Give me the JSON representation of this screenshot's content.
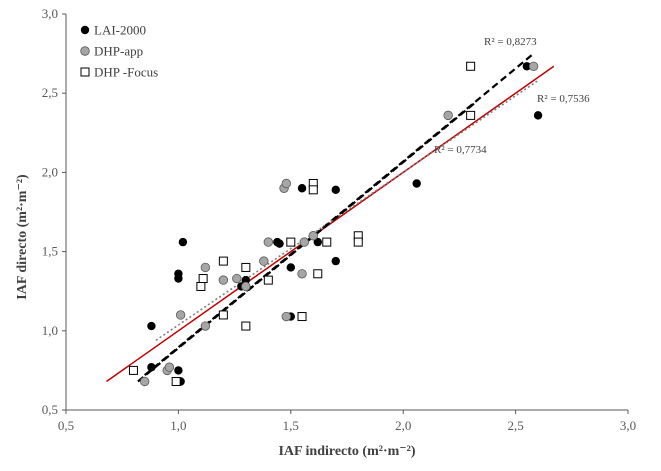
{
  "chart_data": {
    "type": "scatter",
    "title": "",
    "xlabel": "IAF indirecto (m²·m⁻²)",
    "ylabel": "IAF directo (m²·m⁻²)",
    "xlim": [
      0.5,
      3.0
    ],
    "ylim": [
      0.5,
      3.0
    ],
    "xticks": [
      "0,5",
      "1,0",
      "1,5",
      "2,0",
      "2,5",
      "3,0"
    ],
    "yticks": [
      "0,5",
      "1,0",
      "1,5",
      "2,0",
      "2,5",
      "3,0"
    ],
    "grid": false,
    "legend_position": "top-left",
    "series": [
      {
        "name": "LAI-2000",
        "marker": "filled-circle",
        "color": "#000000",
        "trend": {
          "style": "dashed",
          "color": "#000000",
          "r2_label": "R² = 0,8273",
          "x": [
            0.85,
            2.58
          ],
          "y": [
            0.72,
            2.75
          ]
        },
        "points": [
          [
            0.88,
            1.03
          ],
          [
            0.88,
            0.77
          ],
          [
            1.0,
            1.36
          ],
          [
            1.0,
            1.33
          ],
          [
            1.0,
            0.75
          ],
          [
            1.01,
            0.68
          ],
          [
            1.02,
            1.56
          ],
          [
            1.28,
            1.28
          ],
          [
            1.3,
            1.32
          ],
          [
            1.44,
            1.56
          ],
          [
            1.45,
            1.55
          ],
          [
            1.5,
            1.4
          ],
          [
            1.5,
            1.09
          ],
          [
            1.55,
            1.9
          ],
          [
            1.62,
            1.56
          ],
          [
            1.7,
            1.89
          ],
          [
            1.7,
            1.44
          ],
          [
            2.06,
            1.93
          ],
          [
            2.55,
            2.67
          ],
          [
            2.6,
            2.36
          ]
        ]
      },
      {
        "name": "DHP-app",
        "marker": "gray-circle",
        "color": "#a6a6a6",
        "trend": {
          "style": "dotted",
          "color": "#7f7f7f",
          "r2_label": "R² = 0,7536",
          "x": [
            0.9,
            2.6
          ],
          "y": [
            0.94,
            2.58
          ]
        },
        "points": [
          [
            0.85,
            0.68
          ],
          [
            0.95,
            0.75
          ],
          [
            0.96,
            0.77
          ],
          [
            1.01,
            1.1
          ],
          [
            1.12,
            1.4
          ],
          [
            1.12,
            1.03
          ],
          [
            1.2,
            1.32
          ],
          [
            1.26,
            1.33
          ],
          [
            1.3,
            1.28
          ],
          [
            1.38,
            1.44
          ],
          [
            1.4,
            1.56
          ],
          [
            1.47,
            1.9
          ],
          [
            1.48,
            1.93
          ],
          [
            1.48,
            1.09
          ],
          [
            1.55,
            1.36
          ],
          [
            1.56,
            1.56
          ],
          [
            1.6,
            1.6
          ],
          [
            2.2,
            2.36
          ],
          [
            2.58,
            2.67
          ]
        ]
      },
      {
        "name": "DHP -Focus",
        "marker": "open-square",
        "color": "#000000",
        "trend": {
          "style": "dashed",
          "color": "#000000",
          "r2_label": "R² = 0,7734",
          "x": [
            0.82,
            2.32
          ],
          "y": [
            0.68,
            2.44
          ]
        },
        "points": [
          [
            0.8,
            0.75
          ],
          [
            0.99,
            0.68
          ],
          [
            1.1,
            1.28
          ],
          [
            1.11,
            1.33
          ],
          [
            1.2,
            1.44
          ],
          [
            1.2,
            1.1
          ],
          [
            1.3,
            1.4
          ],
          [
            1.3,
            1.03
          ],
          [
            1.4,
            1.32
          ],
          [
            1.5,
            1.56
          ],
          [
            1.55,
            1.09
          ],
          [
            1.6,
            1.93
          ],
          [
            1.6,
            1.89
          ],
          [
            1.62,
            1.36
          ],
          [
            1.66,
            1.56
          ],
          [
            1.8,
            1.6
          ],
          [
            1.8,
            1.56
          ],
          [
            2.3,
            2.36
          ],
          [
            2.3,
            2.67
          ]
        ]
      }
    ],
    "reference_line": {
      "color": "#c00000",
      "x": [
        0.68,
        2.67
      ],
      "y": [
        0.68,
        2.67
      ]
    }
  }
}
